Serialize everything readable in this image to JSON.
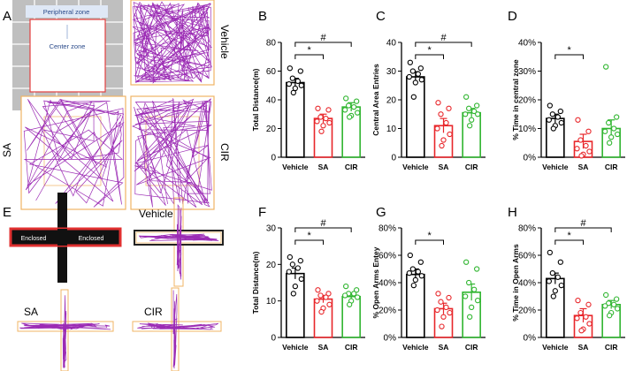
{
  "figure": {
    "panel_letters": [
      "A",
      "B",
      "C",
      "D",
      "E",
      "F",
      "G",
      "H"
    ],
    "open_field": {
      "zone_labels": {
        "peripheral": "Peripheral zone",
        "center": "Center zone"
      },
      "group_labels": {
        "vehicle": "Vehicle",
        "sa": "SA",
        "cir": "CIR"
      }
    },
    "maze": {
      "arm_label": "Enclosed",
      "group_labels": {
        "vehicle": "Vehicle",
        "sa": "SA",
        "cir": "CIR"
      }
    }
  },
  "colors": {
    "vehicle": "#000000",
    "sa": "#e8262a",
    "cir": "#2fb52f",
    "track": "#9b2bb4",
    "arena_border": "#f0b464",
    "zone_red": "#e34040",
    "grid_gray": "#bfbfbf"
  },
  "chart_data": [
    {
      "panel": "B",
      "type": "bar",
      "categories": [
        "Vehicle",
        "SA",
        "CIR"
      ],
      "values": [
        52,
        27,
        35
      ],
      "errors": [
        3,
        3,
        3
      ],
      "points": [
        [
          62,
          60,
          55,
          53,
          51,
          50,
          48,
          45
        ],
        [
          34,
          33,
          28,
          27,
          25,
          24,
          22,
          18
        ],
        [
          41,
          39,
          36,
          35,
          33,
          31,
          29,
          28
        ]
      ],
      "ylabel": "Total Distance(m)",
      "ylim": [
        0,
        80
      ],
      "yticks": [
        0,
        20,
        40,
        60,
        80
      ],
      "yticklabels": [
        "0",
        "20",
        "40",
        "60",
        "80"
      ],
      "annotations": [
        {
          "from": 0,
          "to": 1,
          "symbol": "*"
        },
        {
          "from": 0,
          "to": 2,
          "symbol": "#"
        }
      ]
    },
    {
      "panel": "C",
      "type": "bar",
      "categories": [
        "Vehicle",
        "SA",
        "CIR"
      ],
      "values": [
        28,
        11,
        15.5
      ],
      "errors": [
        1.8,
        2.5,
        1.5
      ],
      "points": [
        [
          33,
          31,
          30,
          29,
          28,
          27,
          26,
          21
        ],
        [
          19,
          17,
          15,
          12,
          10,
          8,
          6,
          4
        ],
        [
          21,
          18,
          17,
          16,
          15,
          15,
          13,
          11
        ]
      ],
      "ylabel": "Central Area Entries",
      "ylim": [
        0,
        40
      ],
      "yticks": [
        0,
        10,
        20,
        30,
        40
      ],
      "yticklabels": [
        "0",
        "10",
        "20",
        "30",
        "40"
      ],
      "annotations": [
        {
          "from": 0,
          "to": 1,
          "symbol": "*"
        },
        {
          "from": 0,
          "to": 2,
          "symbol": "#"
        }
      ]
    },
    {
      "panel": "D",
      "type": "bar",
      "categories": [
        "Vehicle",
        "SA",
        "CIR"
      ],
      "values": [
        13.5,
        5.5,
        10
      ],
      "errors": [
        1.5,
        2.5,
        3
      ],
      "points": [
        [
          18,
          16,
          15,
          14,
          13,
          12,
          11,
          10
        ],
        [
          13,
          9,
          6,
          4,
          3,
          2,
          1,
          0.5
        ],
        [
          31.5,
          14,
          12,
          10,
          9,
          8,
          7,
          5
        ]
      ],
      "ylabel": "% Time in central zone",
      "ylim": [
        0,
        40
      ],
      "yticks": [
        0,
        10,
        20,
        30,
        40
      ],
      "yticklabels": [
        "0%",
        "10%",
        "20%",
        "30%",
        "40%"
      ],
      "annotations": [
        {
          "from": 0,
          "to": 1,
          "symbol": "*"
        }
      ]
    },
    {
      "panel": "F",
      "type": "bar",
      "categories": [
        "Vehicle",
        "SA",
        "CIR"
      ],
      "values": [
        17.5,
        10.5,
        11.2
      ],
      "errors": [
        1.5,
        1,
        0.8
      ],
      "points": [
        [
          22,
          21,
          20,
          19,
          18,
          16,
          14,
          12
        ],
        [
          13,
          12,
          11.5,
          11,
          10,
          9,
          8,
          7
        ],
        [
          14,
          13,
          12,
          12,
          11.5,
          11,
          10,
          9
        ]
      ],
      "ylabel": "Total Distance(m)",
      "ylim": [
        0,
        30
      ],
      "yticks": [
        0,
        10,
        20,
        30
      ],
      "yticklabels": [
        "0",
        "10",
        "20",
        "30"
      ],
      "annotations": [
        {
          "from": 0,
          "to": 1,
          "symbol": "*"
        },
        {
          "from": 0,
          "to": 2,
          "symbol": "#"
        }
      ]
    },
    {
      "panel": "G",
      "type": "bar",
      "categories": [
        "Vehicle",
        "SA",
        "CIR"
      ],
      "values": [
        46,
        21,
        33
      ],
      "errors": [
        4,
        4,
        6
      ],
      "points": [
        [
          60,
          55,
          50,
          48,
          47,
          45,
          42,
          38
        ],
        [
          32,
          29,
          26,
          22,
          20,
          18,
          15,
          8
        ],
        [
          55,
          50,
          40,
          35,
          30,
          27,
          22,
          15
        ]
      ],
      "ylabel": "% Open Arms Entey",
      "ylim": [
        0,
        80
      ],
      "yticks": [
        0,
        20,
        40,
        60,
        80
      ],
      "yticklabels": [
        "0%",
        "20%",
        "40%",
        "60%",
        "80%"
      ],
      "annotations": [
        {
          "from": 0,
          "to": 1,
          "symbol": "*"
        }
      ]
    },
    {
      "panel": "H",
      "type": "bar",
      "categories": [
        "Vehicle",
        "SA",
        "CIR"
      ],
      "values": [
        43,
        16,
        24
      ],
      "errors": [
        4,
        5,
        3
      ],
      "points": [
        [
          62,
          55,
          47,
          44,
          41,
          38,
          34,
          30
        ],
        [
          27,
          24,
          18,
          15,
          14,
          10,
          6,
          5
        ],
        [
          31,
          28,
          25,
          24,
          23,
          21,
          18,
          16
        ]
      ],
      "ylabel": "% Time in Open Arms",
      "ylim": [
        0,
        80
      ],
      "yticks": [
        0,
        20,
        40,
        60,
        80
      ],
      "yticklabels": [
        "0%",
        "20%",
        "40%",
        "60%",
        "80%"
      ],
      "annotations": [
        {
          "from": 0,
          "to": 1,
          "symbol": "*"
        },
        {
          "from": 0,
          "to": 2,
          "symbol": "#"
        }
      ]
    }
  ]
}
